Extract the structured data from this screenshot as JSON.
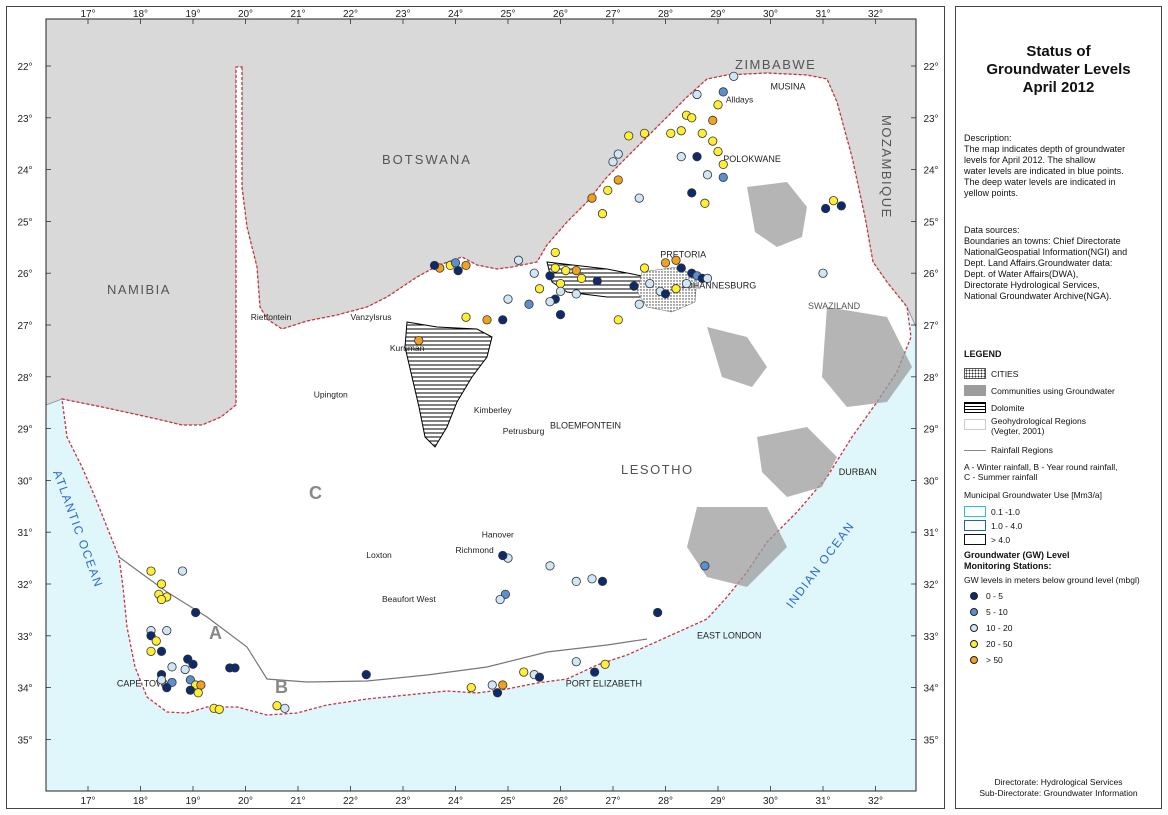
{
  "legend": {
    "title_lines": [
      "Status of",
      "Groundwater Levels",
      "April 2012"
    ],
    "description": "Description:\nThe map indicates depth of groundwater\nlevels for April 2012. The shallow\nwater levels are indicated in blue points.\nThe deep water levels are indicated in\nyellow points.",
    "data_sources": "Data sources:\nBoundaries an towns: Chief Directorate\nNationalGeospatial Information(NGI) and\nDept. Land Affairs.Groundwater data:\nDept. of Water Affairs(DWA),\nDirectorate Hydrological Services,\nNational Groundwater Archive(NGA).",
    "legend_heading": "LEGEND",
    "items": {
      "cities": "CITIES",
      "communities": "Communities using Groundwater",
      "dolomite": "Dolomite",
      "geohydro": "Geohydrological Regions\n(Vegter, 2001)",
      "rainfall": "Rainfall Regions",
      "rainfall_desc": "A - Winter rainfall, B - Year round rainfall,\nC - Summer rainfall"
    },
    "municipal_heading": "Municipal Groundwater Use [Mm3/a]",
    "municipal_classes": [
      {
        "label": "0.1 -1.0",
        "color": "#22c4d8"
      },
      {
        "label": "1.0 - 4.0",
        "color": "#2a5fb0"
      },
      {
        "label": "> 4.0",
        "color": "#111111"
      }
    ],
    "gw_heading": "Groundwater (GW) Level\nMonitoring Stations:",
    "gw_sub": "GW levels in meters below ground level (mbgl)",
    "gw_classes": [
      {
        "label": "0 - 5",
        "color": "#0d2a6b"
      },
      {
        "label": "5 - 10",
        "color": "#5a8fd0"
      },
      {
        "label": "10 - 20",
        "color": "#cfe6f7"
      },
      {
        "label": "20 - 50",
        "color": "#ffee33"
      },
      {
        "label": "> 50",
        "color": "#f0a21e"
      }
    ],
    "footer": [
      "Directorate: Hydrological Services",
      "Sub-Directorate: Groundwater Information"
    ]
  },
  "map": {
    "lon_ticks": [
      "17°",
      "18°",
      "19°",
      "20°",
      "21°",
      "22°",
      "23°",
      "24°",
      "25°",
      "26°",
      "27°",
      "28°",
      "29°",
      "30°",
      "31°",
      "32°"
    ],
    "lat_ticks": [
      "22°",
      "23°",
      "24°",
      "25°",
      "26°",
      "27°",
      "28°",
      "29°",
      "30°",
      "31°",
      "32°",
      "33°",
      "34°",
      "35°"
    ],
    "countries": [
      "ZIMBABWE",
      "BOTSWANA",
      "NAMIBIA",
      "MOZAMBIQUE",
      "LESOTHO",
      "SWAZILAND"
    ],
    "oceans": [
      "ATLANTIC OCEAN",
      "INDIAN OCEAN"
    ],
    "rainfall_regions": [
      "A",
      "B",
      "C"
    ],
    "towns": [
      {
        "name": "PRETORIA",
        "lon": 27.9,
        "lat": 25.7,
        "bold": true
      },
      {
        "name": "JOHANNESBURG",
        "lon": 28.3,
        "lat": 26.3,
        "bold": true
      },
      {
        "name": "POLOKWANE",
        "lon": 29.1,
        "lat": 23.85,
        "bold": true
      },
      {
        "name": "MUSINA",
        "lon": 30.0,
        "lat": 22.45,
        "bold": true
      },
      {
        "name": "Alldays",
        "lon": 29.15,
        "lat": 22.7,
        "bold": false
      },
      {
        "name": "Rietfontein",
        "lon": 20.1,
        "lat": 26.9,
        "bold": false
      },
      {
        "name": "Vanzylsrus",
        "lon": 22.0,
        "lat": 26.9,
        "bold": false
      },
      {
        "name": "Kuruman",
        "lon": 22.75,
        "lat": 27.5,
        "bold": false
      },
      {
        "name": "Upington",
        "lon": 21.3,
        "lat": 28.4,
        "bold": false
      },
      {
        "name": "Kimberley",
        "lon": 24.35,
        "lat": 28.7,
        "bold": false
      },
      {
        "name": "Petrusburg",
        "lon": 24.9,
        "lat": 29.1,
        "bold": false
      },
      {
        "name": "BLOEMFONTEIN",
        "lon": 25.8,
        "lat": 29.0,
        "bold": true
      },
      {
        "name": "DURBAN",
        "lon": 31.3,
        "lat": 29.9,
        "bold": true
      },
      {
        "name": "Hanover",
        "lon": 24.5,
        "lat": 31.1,
        "bold": false
      },
      {
        "name": "Richmond",
        "lon": 24.0,
        "lat": 31.4,
        "bold": false
      },
      {
        "name": "Loxton",
        "lon": 22.3,
        "lat": 31.5,
        "bold": false
      },
      {
        "name": "Beaufort West",
        "lon": 22.6,
        "lat": 32.35,
        "bold": false
      },
      {
        "name": "EAST LONDON",
        "lon": 28.6,
        "lat": 33.05,
        "bold": true
      },
      {
        "name": "CAPE TOWN",
        "lon": 17.55,
        "lat": 33.98,
        "bold": true
      },
      {
        "name": "PORT ELIZABETH",
        "lon": 26.1,
        "lat": 33.98,
        "bold": true
      }
    ],
    "stations": [
      {
        "lon": 29.3,
        "lat": 22.2,
        "cls": 2
      },
      {
        "lon": 29.1,
        "lat": 22.5,
        "cls": 1
      },
      {
        "lon": 28.6,
        "lat": 22.55,
        "cls": 2
      },
      {
        "lon": 29.0,
        "lat": 22.75,
        "cls": 3
      },
      {
        "lon": 28.4,
        "lat": 22.95,
        "cls": 3
      },
      {
        "lon": 28.5,
        "lat": 23.0,
        "cls": 3
      },
      {
        "lon": 28.9,
        "lat": 23.05,
        "cls": 4
      },
      {
        "lon": 28.3,
        "lat": 23.25,
        "cls": 3
      },
      {
        "lon": 28.1,
        "lat": 23.3,
        "cls": 3
      },
      {
        "lon": 27.6,
        "lat": 23.3,
        "cls": 3
      },
      {
        "lon": 27.3,
        "lat": 23.35,
        "cls": 3
      },
      {
        "lon": 28.7,
        "lat": 23.3,
        "cls": 3
      },
      {
        "lon": 28.9,
        "lat": 23.45,
        "cls": 3
      },
      {
        "lon": 29.0,
        "lat": 23.65,
        "cls": 3
      },
      {
        "lon": 28.6,
        "lat": 23.75,
        "cls": 0
      },
      {
        "lon": 28.3,
        "lat": 23.75,
        "cls": 2
      },
      {
        "lon": 29.1,
        "lat": 23.9,
        "cls": 3
      },
      {
        "lon": 28.8,
        "lat": 24.1,
        "cls": 2
      },
      {
        "lon": 29.1,
        "lat": 24.15,
        "cls": 1
      },
      {
        "lon": 28.5,
        "lat": 24.45,
        "cls": 0
      },
      {
        "lon": 28.75,
        "lat": 24.65,
        "cls": 3
      },
      {
        "lon": 27.1,
        "lat": 24.2,
        "cls": 4
      },
      {
        "lon": 26.9,
        "lat": 24.4,
        "cls": 3
      },
      {
        "lon": 26.8,
        "lat": 24.85,
        "cls": 3
      },
      {
        "lon": 27.5,
        "lat": 24.55,
        "cls": 2
      },
      {
        "lon": 26.6,
        "lat": 24.55,
        "cls": 4
      },
      {
        "lon": 27.0,
        "lat": 23.85,
        "cls": 2
      },
      {
        "lon": 27.1,
        "lat": 23.7,
        "cls": 2
      },
      {
        "lon": 31.05,
        "lat": 24.75,
        "cls": 0
      },
      {
        "lon": 31.2,
        "lat": 24.6,
        "cls": 3
      },
      {
        "lon": 31.35,
        "lat": 24.7,
        "cls": 0
      },
      {
        "lon": 31.0,
        "lat": 26.0,
        "cls": 2
      },
      {
        "lon": 23.7,
        "lat": 25.9,
        "cls": 4
      },
      {
        "lon": 23.9,
        "lat": 25.85,
        "cls": 3
      },
      {
        "lon": 24.05,
        "lat": 25.95,
        "cls": 0
      },
      {
        "lon": 24.2,
        "lat": 25.85,
        "cls": 4
      },
      {
        "lon": 23.6,
        "lat": 25.85,
        "cls": 0
      },
      {
        "lon": 24.0,
        "lat": 25.8,
        "cls": 1
      },
      {
        "lon": 25.2,
        "lat": 25.75,
        "cls": 2
      },
      {
        "lon": 25.5,
        "lat": 26.0,
        "cls": 2
      },
      {
        "lon": 25.9,
        "lat": 25.6,
        "cls": 3
      },
      {
        "lon": 25.9,
        "lat": 25.9,
        "cls": 3
      },
      {
        "lon": 26.1,
        "lat": 25.95,
        "cls": 3
      },
      {
        "lon": 26.3,
        "lat": 25.95,
        "cls": 4
      },
      {
        "lon": 26.0,
        "lat": 26.2,
        "cls": 3
      },
      {
        "lon": 25.8,
        "lat": 26.05,
        "cls": 0
      },
      {
        "lon": 26.4,
        "lat": 26.1,
        "cls": 3
      },
      {
        "lon": 25.6,
        "lat": 26.3,
        "cls": 3
      },
      {
        "lon": 25.9,
        "lat": 26.5,
        "cls": 0
      },
      {
        "lon": 25.8,
        "lat": 26.55,
        "cls": 2
      },
      {
        "lon": 26.0,
        "lat": 26.35,
        "cls": 2
      },
      {
        "lon": 26.3,
        "lat": 26.4,
        "cls": 2
      },
      {
        "lon": 26.7,
        "lat": 26.15,
        "cls": 0
      },
      {
        "lon": 25.4,
        "lat": 26.6,
        "cls": 1
      },
      {
        "lon": 25.0,
        "lat": 26.5,
        "cls": 2
      },
      {
        "lon": 24.9,
        "lat": 26.9,
        "cls": 0
      },
      {
        "lon": 24.6,
        "lat": 26.9,
        "cls": 4
      },
      {
        "lon": 24.2,
        "lat": 26.85,
        "cls": 3
      },
      {
        "lon": 26.0,
        "lat": 26.8,
        "cls": 0
      },
      {
        "lon": 23.3,
        "lat": 27.3,
        "cls": 4
      },
      {
        "lon": 27.6,
        "lat": 25.9,
        "cls": 3
      },
      {
        "lon": 27.7,
        "lat": 26.2,
        "cls": 2
      },
      {
        "lon": 28.0,
        "lat": 25.8,
        "cls": 4
      },
      {
        "lon": 28.2,
        "lat": 25.75,
        "cls": 4
      },
      {
        "lon": 28.3,
        "lat": 25.9,
        "cls": 0
      },
      {
        "lon": 28.5,
        "lat": 26.0,
        "cls": 0
      },
      {
        "lon": 28.6,
        "lat": 26.05,
        "cls": 1
      },
      {
        "lon": 28.7,
        "lat": 26.1,
        "cls": 0
      },
      {
        "lon": 28.4,
        "lat": 26.2,
        "cls": 2
      },
      {
        "lon": 28.2,
        "lat": 26.3,
        "cls": 3
      },
      {
        "lon": 27.9,
        "lat": 26.35,
        "cls": 2
      },
      {
        "lon": 28.0,
        "lat": 26.4,
        "cls": 0
      },
      {
        "lon": 27.4,
        "lat": 26.25,
        "cls": 0
      },
      {
        "lon": 28.8,
        "lat": 26.1,
        "cls": 2
      },
      {
        "lon": 27.1,
        "lat": 26.9,
        "cls": 3
      },
      {
        "lon": 27.5,
        "lat": 26.6,
        "cls": 2
      },
      {
        "lon": 18.2,
        "lat": 31.75,
        "cls": 3
      },
      {
        "lon": 18.8,
        "lat": 31.75,
        "cls": 2
      },
      {
        "lon": 18.4,
        "lat": 32.0,
        "cls": 3
      },
      {
        "lon": 18.35,
        "lat": 32.2,
        "cls": 3
      },
      {
        "lon": 18.5,
        "lat": 32.25,
        "cls": 3
      },
      {
        "lon": 18.4,
        "lat": 32.3,
        "cls": 3
      },
      {
        "lon": 19.05,
        "lat": 32.55,
        "cls": 0
      },
      {
        "lon": 18.2,
        "lat": 32.9,
        "cls": 2
      },
      {
        "lon": 18.2,
        "lat": 33.0,
        "cls": 0
      },
      {
        "lon": 18.3,
        "lat": 33.1,
        "cls": 3
      },
      {
        "lon": 18.5,
        "lat": 32.9,
        "cls": 2
      },
      {
        "lon": 18.2,
        "lat": 33.3,
        "cls": 3
      },
      {
        "lon": 18.4,
        "lat": 33.3,
        "cls": 0
      },
      {
        "lon": 18.9,
        "lat": 33.45,
        "cls": 0
      },
      {
        "lon": 19.0,
        "lat": 33.55,
        "cls": 0
      },
      {
        "lon": 18.6,
        "lat": 33.6,
        "cls": 2
      },
      {
        "lon": 18.85,
        "lat": 33.65,
        "cls": 2
      },
      {
        "lon": 19.7,
        "lat": 33.62,
        "cls": 0
      },
      {
        "lon": 19.8,
        "lat": 33.62,
        "cls": 0
      },
      {
        "lon": 18.4,
        "lat": 33.75,
        "cls": 0
      },
      {
        "lon": 18.4,
        "lat": 33.85,
        "cls": 2
      },
      {
        "lon": 18.6,
        "lat": 33.9,
        "cls": 1
      },
      {
        "lon": 18.5,
        "lat": 34.0,
        "cls": 0
      },
      {
        "lon": 18.95,
        "lat": 33.85,
        "cls": 1
      },
      {
        "lon": 19.05,
        "lat": 33.95,
        "cls": 3
      },
      {
        "lon": 19.15,
        "lat": 33.95,
        "cls": 4
      },
      {
        "lon": 18.95,
        "lat": 34.05,
        "cls": 0
      },
      {
        "lon": 19.1,
        "lat": 34.1,
        "cls": 3
      },
      {
        "lon": 19.4,
        "lat": 34.4,
        "cls": 3
      },
      {
        "lon": 19.5,
        "lat": 34.42,
        "cls": 3
      },
      {
        "lon": 20.6,
        "lat": 34.35,
        "cls": 3
      },
      {
        "lon": 20.75,
        "lat": 34.4,
        "cls": 2
      },
      {
        "lon": 22.3,
        "lat": 33.75,
        "cls": 0
      },
      {
        "lon": 24.3,
        "lat": 34.0,
        "cls": 3
      },
      {
        "lon": 24.7,
        "lat": 33.95,
        "cls": 2
      },
      {
        "lon": 24.8,
        "lat": 34.1,
        "cls": 0
      },
      {
        "lon": 24.9,
        "lat": 33.95,
        "cls": 4
      },
      {
        "lon": 25.3,
        "lat": 33.7,
        "cls": 3
      },
      {
        "lon": 25.5,
        "lat": 33.75,
        "cls": 2
      },
      {
        "lon": 25.6,
        "lat": 33.8,
        "cls": 0
      },
      {
        "lon": 26.3,
        "lat": 33.5,
        "cls": 2
      },
      {
        "lon": 26.65,
        "lat": 33.7,
        "cls": 0
      },
      {
        "lon": 26.85,
        "lat": 33.55,
        "cls": 3
      },
      {
        "lon": 25.0,
        "lat": 31.5,
        "cls": 2
      },
      {
        "lon": 24.9,
        "lat": 31.45,
        "cls": 0
      },
      {
        "lon": 25.8,
        "lat": 31.65,
        "cls": 2
      },
      {
        "lon": 24.95,
        "lat": 32.2,
        "cls": 1
      },
      {
        "lon": 24.85,
        "lat": 32.3,
        "cls": 2
      },
      {
        "lon": 26.6,
        "lat": 31.9,
        "cls": 2
      },
      {
        "lon": 26.8,
        "lat": 31.95,
        "cls": 0
      },
      {
        "lon": 26.3,
        "lat": 31.95,
        "cls": 2
      },
      {
        "lon": 27.85,
        "lat": 32.55,
        "cls": 0
      },
      {
        "lon": 28.75,
        "lat": 31.65,
        "cls": 1
      }
    ]
  }
}
